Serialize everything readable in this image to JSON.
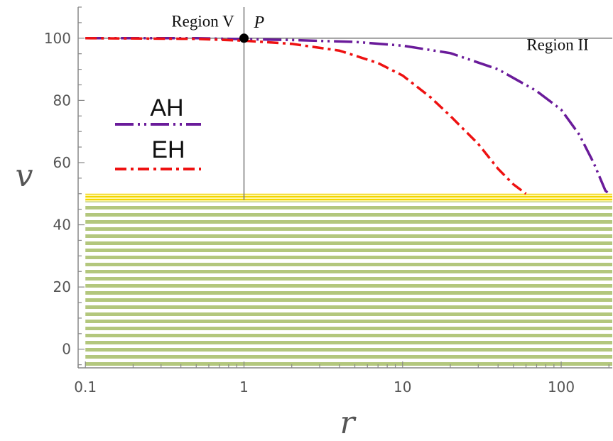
{
  "chart_data": {
    "type": "line",
    "xlabel": "r",
    "ylabel": "v",
    "x_scale": "log",
    "xlim": [
      0.09,
      210
    ],
    "ylim": [
      -6,
      110
    ],
    "x_ticks": [
      {
        "value": 0.1,
        "label": "0.1"
      },
      {
        "value": 1,
        "label": "1"
      },
      {
        "value": 10,
        "label": "10"
      },
      {
        "value": 100,
        "label": "100"
      }
    ],
    "y_ticks": [
      {
        "value": 0,
        "label": "0"
      },
      {
        "value": 20,
        "label": "20"
      },
      {
        "value": 40,
        "label": "40"
      },
      {
        "value": 60,
        "label": "60"
      },
      {
        "value": 80,
        "label": "80"
      },
      {
        "value": 100,
        "label": "100"
      }
    ],
    "grid": false,
    "legend_position": "left",
    "series": [
      {
        "name": "AH",
        "color": "#6a1b9a",
        "style": "dash-dot-dot",
        "points": [
          [
            0.1,
            100
          ],
          [
            0.5,
            100
          ],
          [
            1,
            99.7
          ],
          [
            2,
            99.4
          ],
          [
            5,
            98.8
          ],
          [
            10,
            97.6
          ],
          [
            20,
            95.2
          ],
          [
            40,
            90
          ],
          [
            70,
            83
          ],
          [
            100,
            77
          ],
          [
            130,
            69
          ],
          [
            160,
            60
          ],
          [
            190,
            51
          ],
          [
            200,
            50
          ]
        ]
      },
      {
        "name": "EH",
        "color": "#ee1111",
        "style": "dash-dot",
        "points": [
          [
            0.1,
            100
          ],
          [
            0.5,
            99.8
          ],
          [
            1,
            99.2
          ],
          [
            2,
            98.2
          ],
          [
            4,
            96
          ],
          [
            7,
            92
          ],
          [
            10,
            88
          ],
          [
            15,
            81
          ],
          [
            20,
            75
          ],
          [
            30,
            66
          ],
          [
            40,
            58
          ],
          [
            50,
            53
          ],
          [
            60,
            50
          ]
        ]
      }
    ],
    "reference_lines": [
      {
        "orientation": "horizontal",
        "value": 100,
        "from_x": 0.1,
        "to_x": 210,
        "color": "#777777"
      },
      {
        "orientation": "vertical",
        "value": 1,
        "from_y": 48,
        "to_y": 110,
        "color": "#777777"
      }
    ],
    "shaded_band": {
      "y_from": -6,
      "y_to": 48,
      "color": "#b3c77d",
      "boundary_y_from": 47.5,
      "boundary_y_to": 50,
      "boundary_color": "#f2d500"
    },
    "points_of_interest": [
      {
        "label": "P",
        "x": 1,
        "y": 100
      }
    ],
    "annotations": [
      {
        "text": "Region V",
        "x": 0.55,
        "y": 105.5
      },
      {
        "text": "Region II",
        "x": 95,
        "y": 98
      }
    ]
  }
}
